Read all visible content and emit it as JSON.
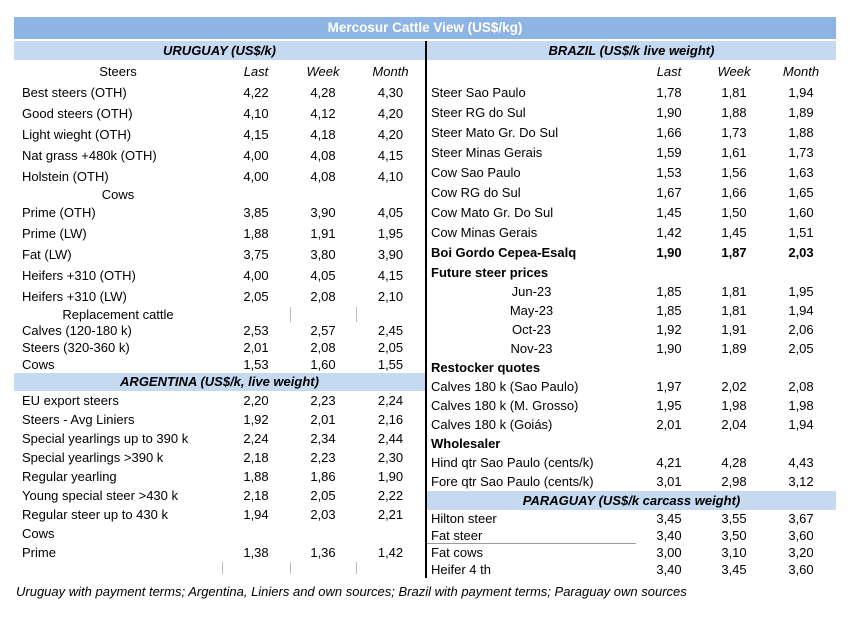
{
  "title": "Mercosur Cattle View (US$/kg)",
  "footer": "Uruguay with payment terms; Argentina, Liniers and own sources; Brazil with payment terms; Paraguay own sources",
  "colors": {
    "title_bar_bg": "#8DB4E2",
    "section_band_bg": "#C5D9F1",
    "title_text": "#FFFFFF",
    "divider": "#000000"
  },
  "left": {
    "band": "URUGUAY (US$/k)",
    "rows": [
      {
        "style": "cols",
        "label": "Steers",
        "last": "Last",
        "week": "Week",
        "month": "Month"
      },
      {
        "style": "data",
        "label": "Best steers (OTH)",
        "last": "4,22",
        "week": "4,28",
        "month": "4,30"
      },
      {
        "style": "data",
        "label": "Good steers (OTH)",
        "last": "4,10",
        "week": "4,12",
        "month": "4,20"
      },
      {
        "style": "data",
        "label": "Light wieght (OTH)",
        "last": "4,15",
        "week": "4,18",
        "month": "4,20"
      },
      {
        "style": "data",
        "label": "Nat grass +480k (OTH)",
        "last": "4,00",
        "week": "4,08",
        "month": "4,15"
      },
      {
        "style": "data",
        "label": "Holstein (OTH)",
        "last": "4,00",
        "week": "4,08",
        "month": "4,10"
      },
      {
        "style": "center",
        "label": "Cows",
        "last": "",
        "week": "",
        "month": ""
      },
      {
        "style": "data",
        "label": "Prime (OTH)",
        "last": "3,85",
        "week": "3,90",
        "month": "4,05"
      },
      {
        "style": "data",
        "label": "Prime (LW)",
        "last": "1,88",
        "week": "1,91",
        "month": "1,95"
      },
      {
        "style": "data",
        "label": "Fat (LW)",
        "last": "3,75",
        "week": "3,80",
        "month": "3,90"
      },
      {
        "style": "data",
        "label": "Heifers +310 (OTH)",
        "last": "4,00",
        "week": "4,05",
        "month": "4,15"
      },
      {
        "style": "data",
        "label": "Heifers +310 (LW)",
        "last": "2,05",
        "week": "2,08",
        "month": "2,10"
      },
      {
        "style": "center",
        "label": "Replacement cattle",
        "last": "",
        "week": "",
        "month": "",
        "ticks": [
          "c2",
          "c3"
        ]
      },
      {
        "style": "data",
        "label": "Calves (120-180 k)",
        "last": "2,53",
        "week": "2,57",
        "month": "2,45"
      },
      {
        "style": "data",
        "label": "Steers (320-360 k)",
        "last": "2,01",
        "week": "2,08",
        "month": "2,05"
      },
      {
        "style": "data",
        "label": "Cows",
        "last": "1,53",
        "week": "1,60",
        "month": "1,55"
      },
      {
        "style": "band",
        "label": "ARGENTINA (US$/k, live weight)"
      },
      {
        "style": "data",
        "label": "EU export steers",
        "last": "2,20",
        "week": "2,23",
        "month": "2,24"
      },
      {
        "style": "data",
        "label": "Steers - Avg Liniers",
        "last": "1,92",
        "week": "2,01",
        "month": "2,16"
      },
      {
        "style": "data",
        "label": "Special yearlings up to 390 k",
        "last": "2,24",
        "week": "2,34",
        "month": "2,44"
      },
      {
        "style": "data",
        "label": "Special yearlings >390 k",
        "last": "2,18",
        "week": "2,23",
        "month": "2,30"
      },
      {
        "style": "data",
        "label": "Regular yearling",
        "last": "1,88",
        "week": "1,86",
        "month": "1,90"
      },
      {
        "style": "data",
        "label": "Young special steer >430 k",
        "last": "2,18",
        "week": "2,05",
        "month": "2,22"
      },
      {
        "style": "data",
        "label": "Regular steer up to 430 k",
        "last": "1,94",
        "week": "2,03",
        "month": "2,21"
      },
      {
        "style": "data",
        "label": "Cows",
        "last": "",
        "week": "",
        "month": ""
      },
      {
        "style": "data",
        "label": "Prime",
        "last": "1,38",
        "week": "1,36",
        "month": "1,42"
      },
      {
        "style": "data",
        "label": "",
        "last": "",
        "week": "",
        "month": "",
        "ticks": [
          "c1",
          "c2",
          "c3"
        ]
      }
    ]
  },
  "right": {
    "band": "BRAZIL  (US$/k live weight)",
    "rows": [
      {
        "style": "cols",
        "label": "",
        "last": "Last",
        "week": "Week",
        "month": "Month"
      },
      {
        "style": "data",
        "label": "Steer Sao Paulo",
        "last": "1,78",
        "week": "1,81",
        "month": "1,94"
      },
      {
        "style": "data",
        "label": "Steer RG do Sul",
        "last": "1,90",
        "week": "1,88",
        "month": "1,89"
      },
      {
        "style": "data",
        "label": "Steer Mato Gr. Do Sul",
        "last": "1,66",
        "week": "1,73",
        "month": "1,88"
      },
      {
        "style": "data",
        "label": "Steer Minas Gerais",
        "last": "1,59",
        "week": "1,61",
        "month": "1,73"
      },
      {
        "style": "data",
        "label": "Cow Sao Paulo",
        "last": "1,53",
        "week": "1,56",
        "month": "1,63"
      },
      {
        "style": "data",
        "label": "Cow RG do Sul",
        "last": "1,67",
        "week": "1,66",
        "month": "1,65"
      },
      {
        "style": "data",
        "label": "Cow Mato Gr. Do Sul",
        "last": "1,45",
        "week": "1,50",
        "month": "1,60"
      },
      {
        "style": "data",
        "label": "Cow Minas Gerais",
        "last": "1,42",
        "week": "1,45",
        "month": "1,51"
      },
      {
        "style": "bold",
        "label": "Boi Gordo Cepea-Esalq",
        "last": "1,90",
        "week": "1,87",
        "month": "2,03"
      },
      {
        "style": "boldlabel",
        "label": "Future steer prices",
        "last": "",
        "week": "",
        "month": ""
      },
      {
        "style": "center",
        "label": "Jun-23",
        "last": "1,85",
        "week": "1,81",
        "month": "1,95"
      },
      {
        "style": "center",
        "label": "May-23",
        "last": "1,85",
        "week": "1,81",
        "month": "1,94"
      },
      {
        "style": "center",
        "label": "Oct-23",
        "last": "1,92",
        "week": "1,91",
        "month": "2,06"
      },
      {
        "style": "center",
        "label": "Nov-23",
        "last": "1,90",
        "week": "1,89",
        "month": "2,05"
      },
      {
        "style": "boldlabel",
        "label": "Restocker quotes",
        "last": "",
        "week": "",
        "month": ""
      },
      {
        "style": "data",
        "label": "Calves 180 k (Sao Paulo)",
        "last": "1,97",
        "week": "2,02",
        "month": "2,08"
      },
      {
        "style": "data",
        "label": "Calves 180 k (M. Grosso)",
        "last": "1,95",
        "week": "1,98",
        "month": "1,98"
      },
      {
        "style": "data",
        "label": "Calves 180 k (Goiás)",
        "last": "2,01",
        "week": "2,04",
        "month": "1,94"
      },
      {
        "style": "boldlabel",
        "label": "Wholesaler",
        "last": "",
        "week": "",
        "month": ""
      },
      {
        "style": "data",
        "label": "Hind qtr Sao Paulo (cents/k)",
        "last": "4,21",
        "week": "4,28",
        "month": "4,43"
      },
      {
        "style": "data",
        "label": "Fore qtr Sao Paulo (cents/k)",
        "last": "3,01",
        "week": "2,98",
        "month": "3,12"
      },
      {
        "style": "band",
        "label": "PARAGUAY  (US$/k carcass weight)"
      },
      {
        "style": "data",
        "label": "Hilton steer",
        "last": "3,45",
        "week": "3,55",
        "month": "3,67"
      },
      {
        "style": "data",
        "label": "Fat steer",
        "last": "3,40",
        "week": "3,50",
        "month": "3,60",
        "underline": true
      },
      {
        "style": "data",
        "label": "Fat cows",
        "last": "3,00",
        "week": "3,10",
        "month": "3,20"
      },
      {
        "style": "data",
        "label": "Heifer 4 th",
        "last": "3,40",
        "week": "3,45",
        "month": "3,60"
      }
    ]
  }
}
